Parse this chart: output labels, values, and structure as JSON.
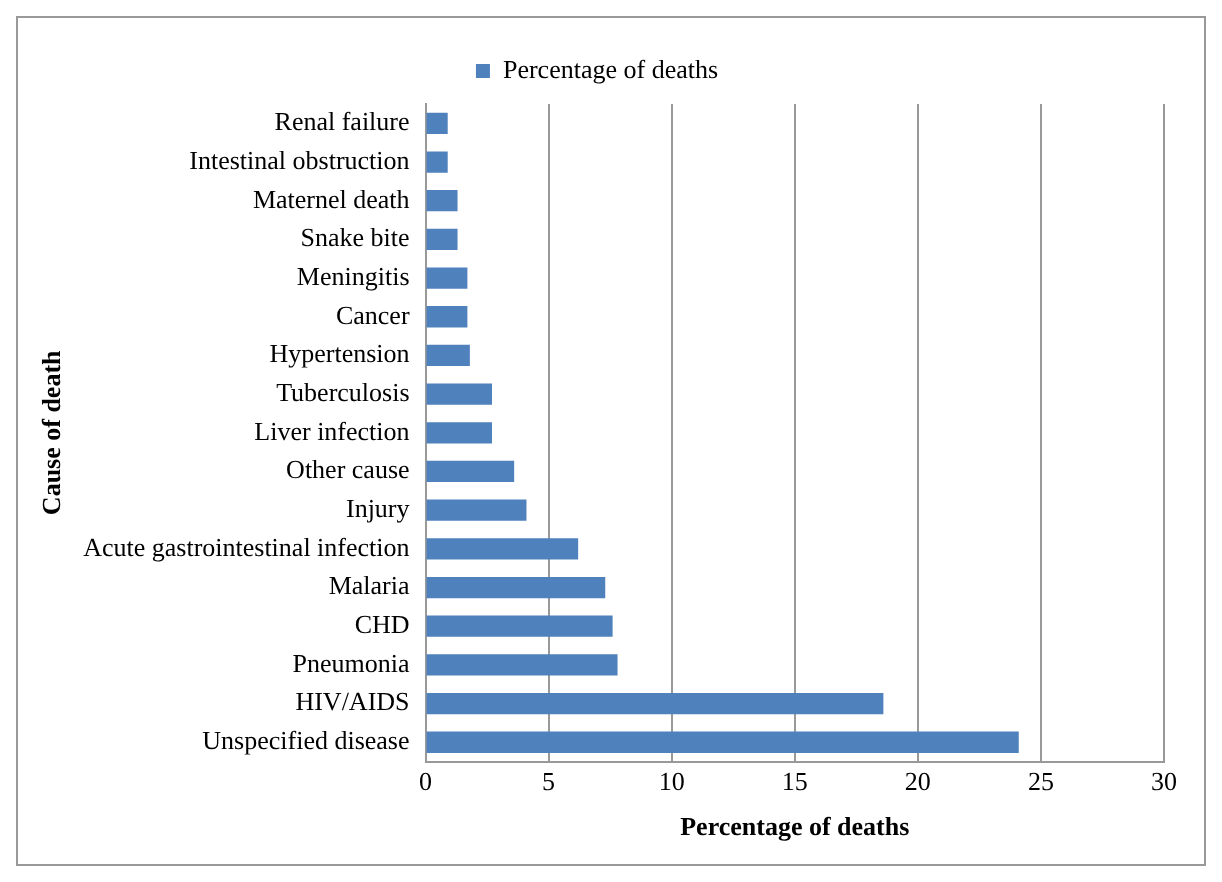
{
  "chart_data": {
    "type": "bar",
    "orientation": "horizontal",
    "categories": [
      "Renal failure",
      "Intestinal obstruction",
      "Maternel death",
      "Snake bite",
      "Meningitis",
      "Cancer",
      "Hypertension",
      "Tuberculosis",
      "Liver infection",
      "Other cause",
      "Injury",
      "Acute gastrointestinal infection",
      "Malaria",
      "CHD",
      "Pneumonia",
      "HIV/AIDS",
      "Unspecified disease"
    ],
    "series": [
      {
        "name": "Percentage of deaths",
        "color": "#4f81bd",
        "values": [
          0.9,
          0.9,
          1.3,
          1.3,
          1.7,
          1.7,
          1.8,
          2.7,
          2.7,
          3.6,
          4.1,
          6.2,
          7.3,
          7.6,
          7.8,
          18.6,
          24.1
        ]
      }
    ],
    "xlim": [
      0,
      30
    ],
    "xticks": [
      0,
      5,
      10,
      15,
      20,
      25,
      30
    ],
    "xlabel": "Percentage of deaths",
    "ylabel": "Cause of death",
    "grid": "x",
    "legend": "top"
  }
}
